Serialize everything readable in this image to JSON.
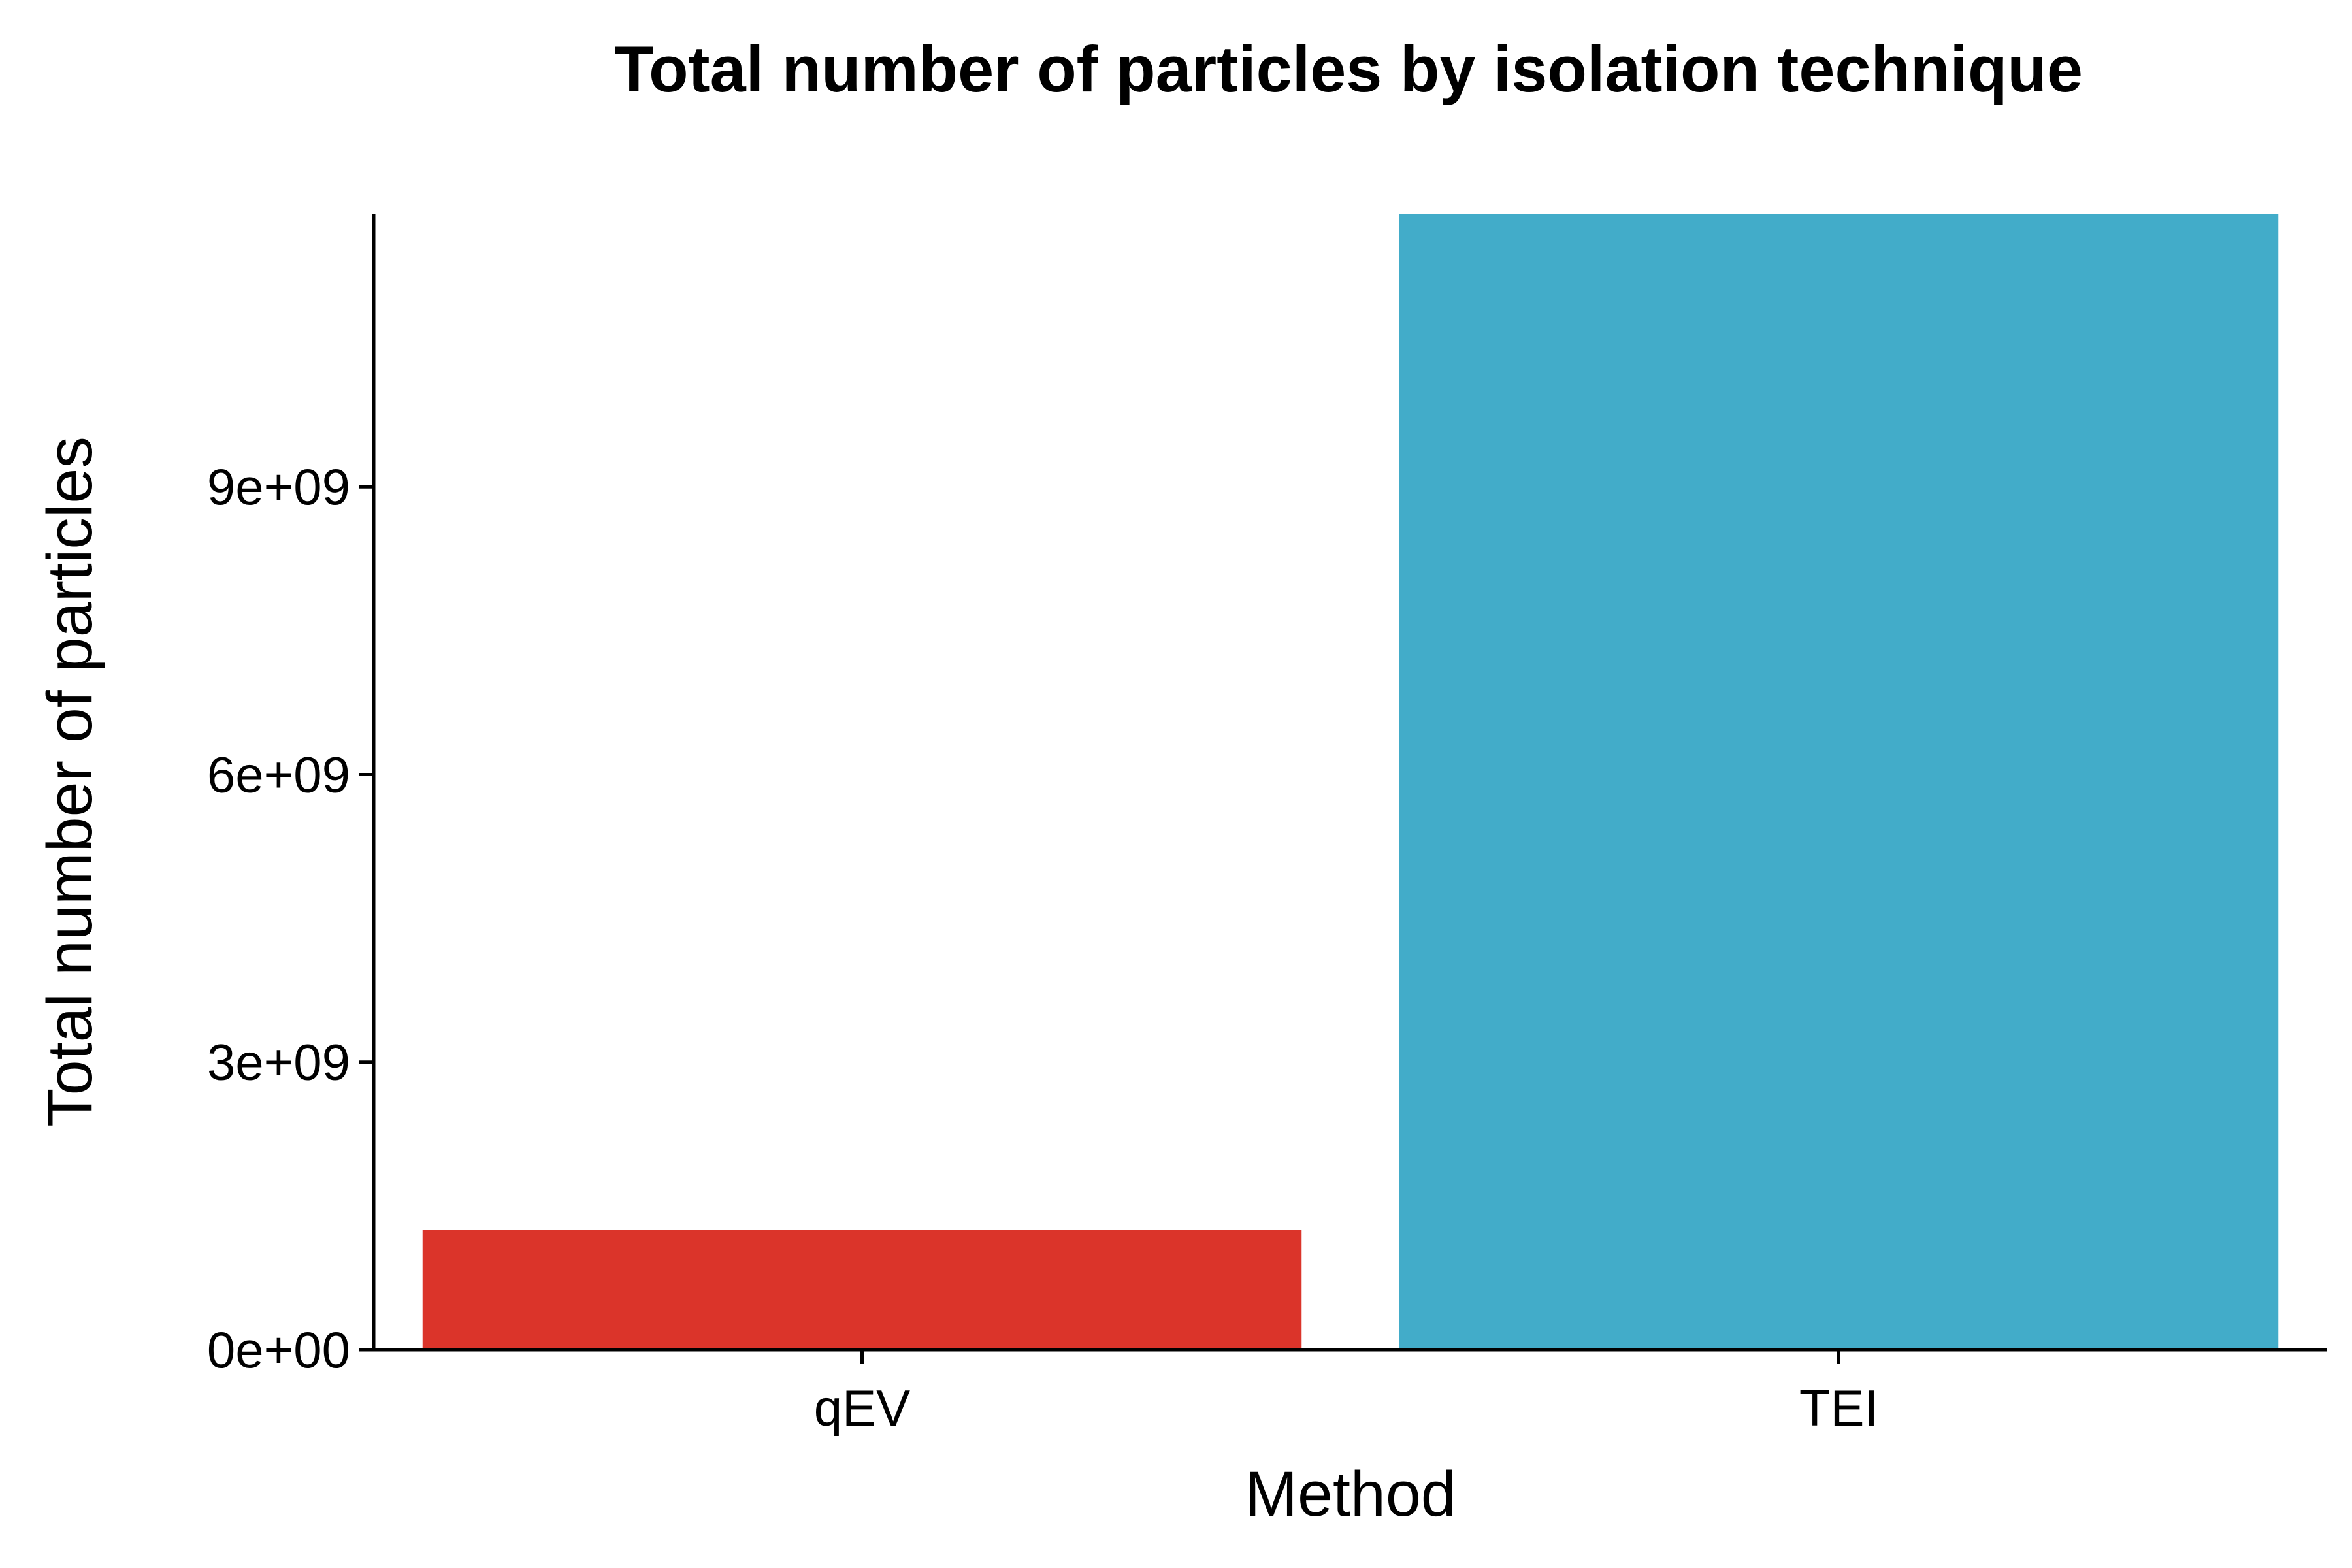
{
  "chart_data": {
    "type": "bar",
    "title": "Total number of particles by isolation technique",
    "xlabel": "Method",
    "ylabel": "Total number of particles",
    "categories": [
      "qEV",
      "TEI"
    ],
    "values": [
      1250000000,
      11850000000
    ],
    "colors": [
      "#DB342A",
      "#42ACC9"
    ],
    "ylim": [
      0,
      11850000000
    ],
    "yticks": [
      0,
      3000000000,
      6000000000,
      9000000000
    ],
    "ytick_labels": [
      "0e+00",
      "3e+09",
      "6e+09",
      "9e+09"
    ],
    "grid": false,
    "legend": "none"
  }
}
